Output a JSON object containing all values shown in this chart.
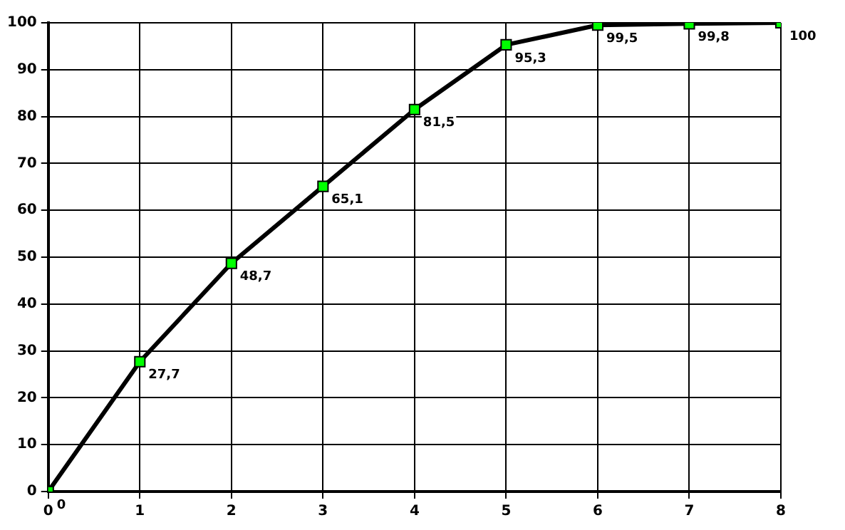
{
  "chart_data": {
    "type": "line",
    "x": [
      0,
      1,
      2,
      3,
      4,
      5,
      6,
      7,
      8
    ],
    "series": [
      {
        "color": "#00ff00",
        "values": [
          0,
          27.7,
          48.7,
          65.1,
          81.5,
          95.3,
          99.5,
          99.8,
          100
        ],
        "value_labels": [
          "0",
          "27,7",
          "48,7",
          "65,1",
          "81,5",
          "95,3",
          "99,5",
          "99,8",
          "100"
        ]
      }
    ],
    "xlim": [
      0,
      8
    ],
    "xticks": [
      0,
      1,
      2,
      3,
      4,
      5,
      6,
      7,
      8
    ],
    "ylim": [
      0,
      100
    ],
    "yticks": [
      0,
      10,
      20,
      30,
      40,
      50,
      60,
      70,
      80,
      90,
      100
    ],
    "grid": true,
    "legend": false,
    "marker": "square",
    "line_style": "solid"
  }
}
